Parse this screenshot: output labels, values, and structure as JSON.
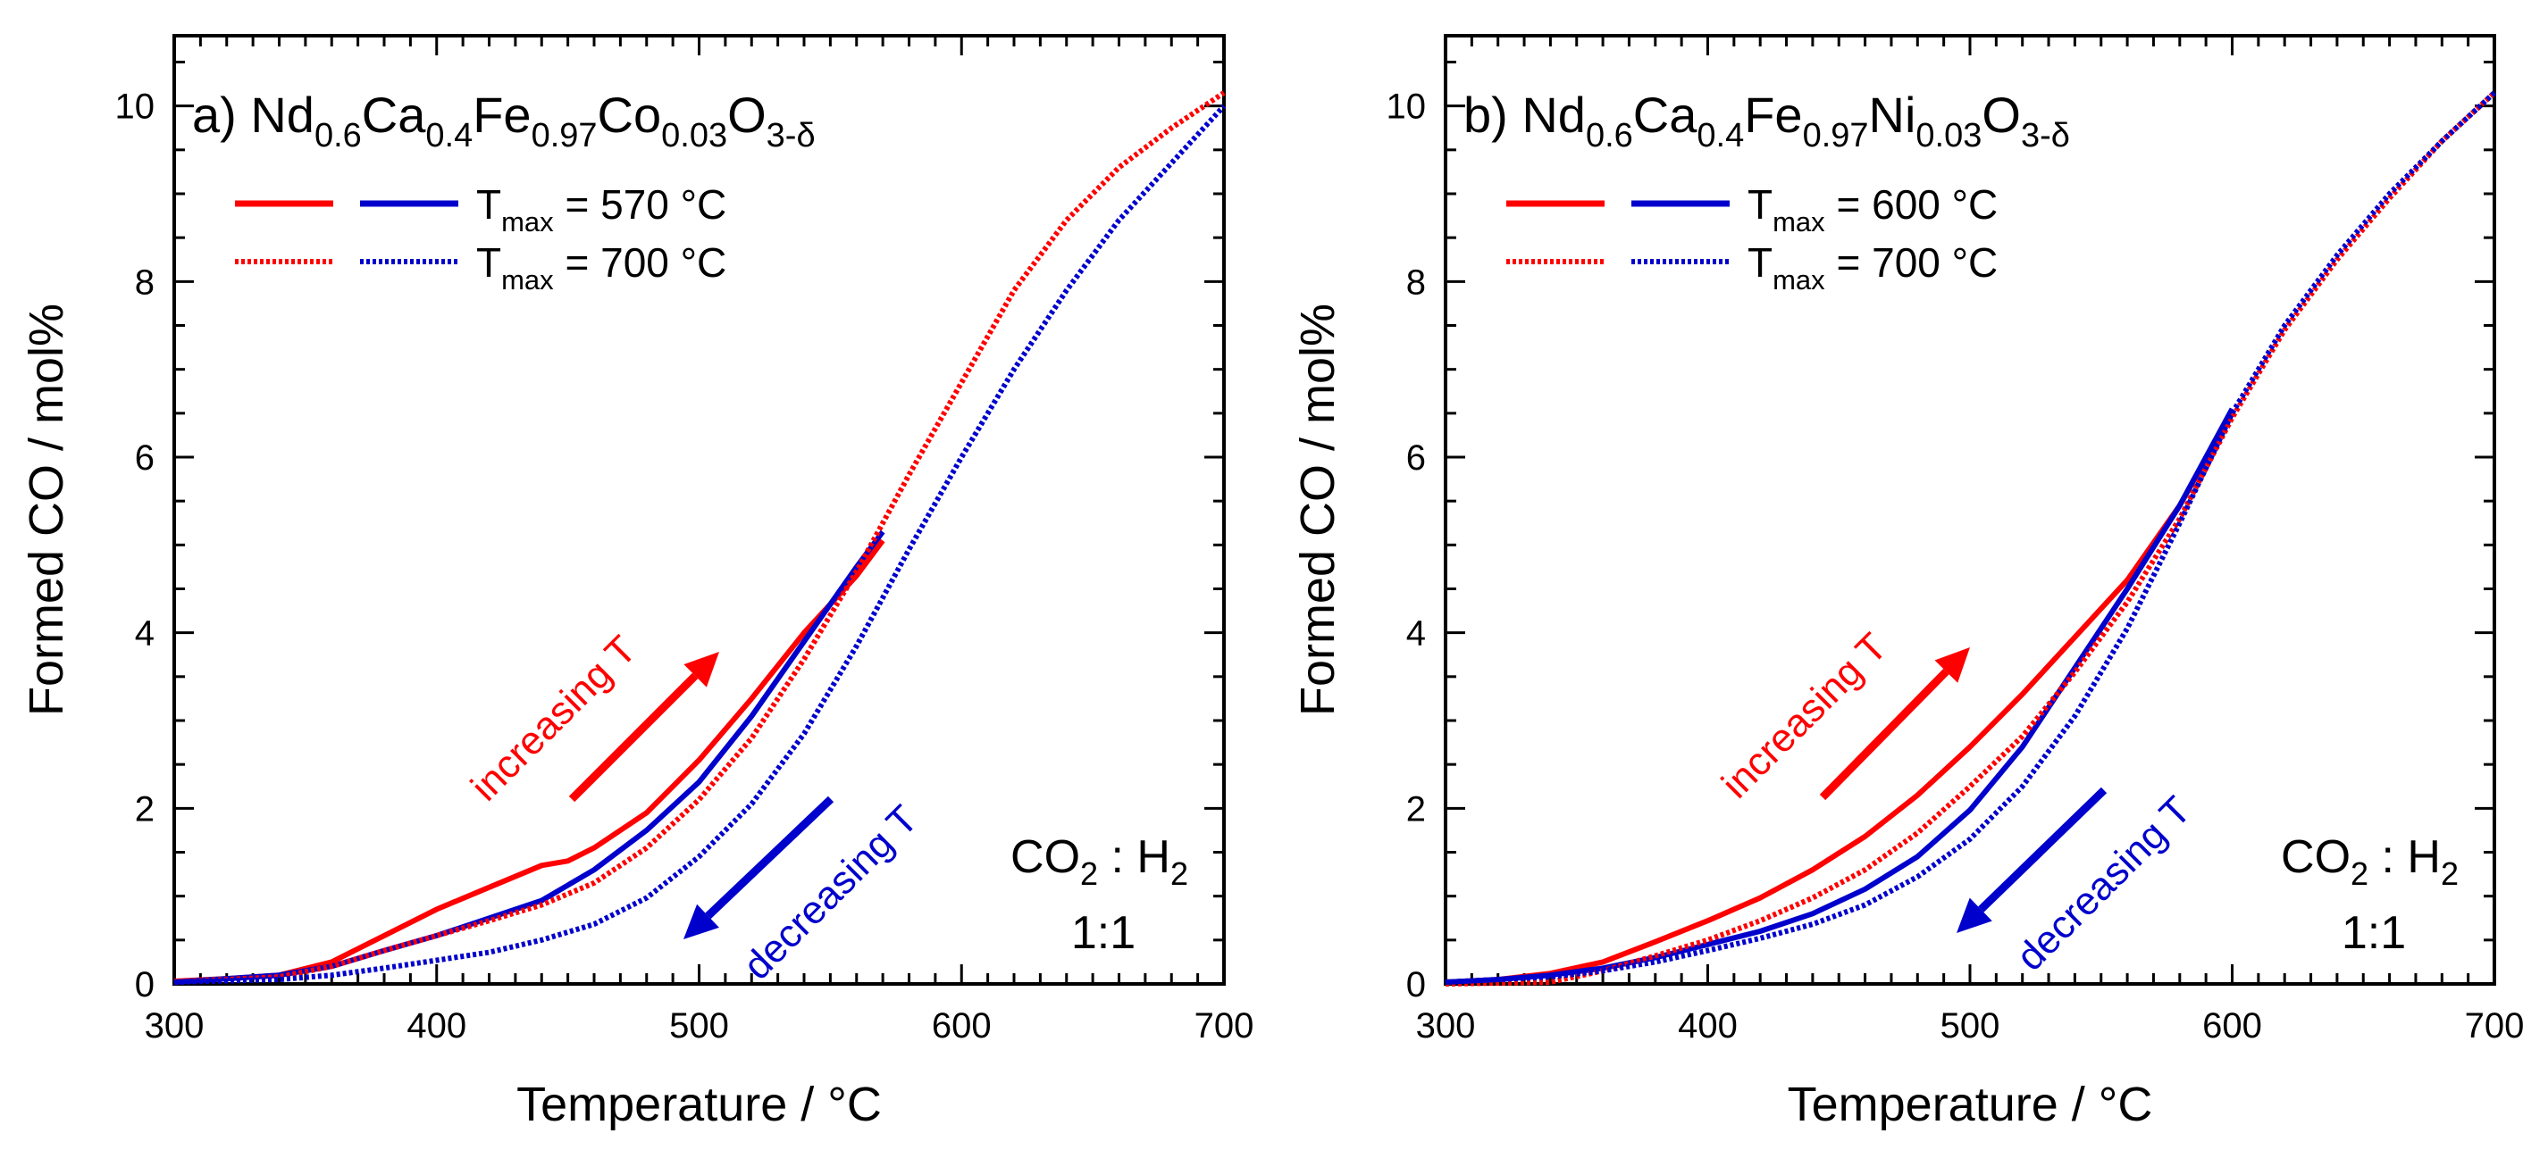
{
  "chart_data": [
    {
      "type": "line",
      "panel_label": "a)",
      "title_parts": [
        {
          "t": "Nd"
        },
        {
          "t": "0.6",
          "sub": true
        },
        {
          "t": "Ca"
        },
        {
          "t": "0.4",
          "sub": true
        },
        {
          "t": "Fe"
        },
        {
          "t": "0.97",
          "sub": true
        },
        {
          "t": "Co"
        },
        {
          "t": "0.03",
          "sub": true
        },
        {
          "t": "O"
        },
        {
          "t": "3-δ",
          "sub": true
        }
      ],
      "xlabel": "Temperature / °C",
      "ylabel": "Formed CO / mol%",
      "xlim": [
        300,
        700
      ],
      "ylim": [
        0,
        10.8
      ],
      "xticks": [
        300,
        400,
        500,
        600,
        700
      ],
      "yticks": [
        0,
        2,
        4,
        6,
        8,
        10
      ],
      "legend": [
        {
          "label_main": "T",
          "label_sub": "max",
          "label_rest": " = 570 °C",
          "style": "solid"
        },
        {
          "label_main": "T",
          "label_sub": "max",
          "label_rest": " = 700 °C",
          "style": "dotted"
        }
      ],
      "annotations": {
        "increasing": "increasing T",
        "decreasing": "decreasing T",
        "gas_main": "CO",
        "gas_sub1": "2",
        "gas_sep": " : H",
        "gas_sub2": "2",
        "ratio": "1:1"
      },
      "colors": {
        "heating": "#ff0000",
        "cooling": "#0000cc"
      },
      "series": [
        {
          "name": "Tmax 570 °C heating",
          "color": "#ff0000",
          "style": "solid",
          "x": [
            300,
            320,
            340,
            360,
            380,
            400,
            420,
            440,
            450,
            460,
            480,
            500,
            520,
            540,
            560,
            570
          ],
          "y": [
            0.03,
            0.06,
            0.1,
            0.25,
            0.55,
            0.85,
            1.1,
            1.35,
            1.4,
            1.55,
            1.95,
            2.55,
            3.25,
            4.0,
            4.65,
            5.05
          ]
        },
        {
          "name": "Tmax 570 °C cooling",
          "color": "#0000cc",
          "style": "solid",
          "x": [
            300,
            320,
            340,
            360,
            380,
            400,
            420,
            440,
            460,
            480,
            500,
            520,
            540,
            560,
            570
          ],
          "y": [
            0.02,
            0.06,
            0.1,
            0.2,
            0.38,
            0.55,
            0.75,
            0.95,
            1.3,
            1.75,
            2.3,
            3.05,
            3.9,
            4.75,
            5.15
          ]
        },
        {
          "name": "Tmax 700 °C heating",
          "color": "#ff0000",
          "style": "dotted",
          "x": [
            300,
            340,
            360,
            380,
            400,
            420,
            440,
            460,
            480,
            500,
            520,
            540,
            560,
            580,
            600,
            620,
            640,
            660,
            680,
            700
          ],
          "y": [
            0.02,
            0.08,
            0.2,
            0.38,
            0.55,
            0.72,
            0.9,
            1.15,
            1.55,
            2.1,
            2.8,
            3.7,
            4.7,
            5.8,
            6.85,
            7.9,
            8.7,
            9.3,
            9.75,
            10.15
          ]
        },
        {
          "name": "Tmax 700 °C cooling",
          "color": "#0000cc",
          "style": "dotted",
          "x": [
            300,
            340,
            360,
            380,
            400,
            420,
            440,
            460,
            480,
            500,
            520,
            540,
            560,
            580,
            600,
            620,
            640,
            660,
            680,
            700
          ],
          "y": [
            0.02,
            0.05,
            0.1,
            0.18,
            0.27,
            0.36,
            0.5,
            0.68,
            0.98,
            1.45,
            2.05,
            2.85,
            3.85,
            4.95,
            6.0,
            7.0,
            7.9,
            8.7,
            9.35,
            10.0
          ]
        }
      ]
    },
    {
      "type": "line",
      "panel_label": "b)",
      "title_parts": [
        {
          "t": "Nd"
        },
        {
          "t": "0.6",
          "sub": true
        },
        {
          "t": "Ca"
        },
        {
          "t": "0.4",
          "sub": true
        },
        {
          "t": "Fe"
        },
        {
          "t": "0.97",
          "sub": true
        },
        {
          "t": "Ni"
        },
        {
          "t": "0.03",
          "sub": true
        },
        {
          "t": "O"
        },
        {
          "t": "3-δ",
          "sub": true
        }
      ],
      "xlabel": "Temperature / °C",
      "ylabel": "Formed CO / mol%",
      "xlim": [
        300,
        700
      ],
      "ylim": [
        0,
        10.8
      ],
      "xticks": [
        300,
        400,
        500,
        600,
        700
      ],
      "yticks": [
        0,
        2,
        4,
        6,
        8,
        10
      ],
      "legend": [
        {
          "label_main": "T",
          "label_sub": "max",
          "label_rest": " = 600 °C",
          "style": "solid"
        },
        {
          "label_main": "T",
          "label_sub": "max",
          "label_rest": " = 700 °C",
          "style": "dotted"
        }
      ],
      "annotations": {
        "increasing": "increasing T",
        "decreasing": "decreasing T",
        "gas_main": "CO",
        "gas_sub1": "2",
        "gas_sep": " : H",
        "gas_sub2": "2",
        "ratio": "1:1"
      },
      "colors": {
        "heating": "#ff0000",
        "cooling": "#0000cc"
      },
      "series": [
        {
          "name": "Tmax 600 °C heating",
          "color": "#ff0000",
          "style": "solid",
          "x": [
            300,
            320,
            340,
            360,
            380,
            400,
            420,
            440,
            460,
            480,
            500,
            520,
            540,
            560,
            580,
            600
          ],
          "y": [
            0.02,
            0.05,
            0.12,
            0.25,
            0.48,
            0.72,
            0.98,
            1.3,
            1.68,
            2.15,
            2.7,
            3.3,
            3.95,
            4.6,
            5.45,
            6.5
          ]
        },
        {
          "name": "Tmax 600 °C cooling",
          "color": "#0000cc",
          "style": "solid",
          "x": [
            300,
            320,
            340,
            360,
            380,
            400,
            420,
            440,
            460,
            480,
            500,
            520,
            540,
            560,
            580,
            600
          ],
          "y": [
            0.02,
            0.05,
            0.1,
            0.18,
            0.3,
            0.45,
            0.6,
            0.8,
            1.08,
            1.45,
            1.98,
            2.7,
            3.6,
            4.5,
            5.45,
            6.55
          ]
        },
        {
          "name": "Tmax 700 °C heating",
          "color": "#ff0000",
          "style": "dotted",
          "x": [
            300,
            340,
            360,
            380,
            400,
            420,
            440,
            460,
            480,
            500,
            520,
            540,
            560,
            580,
            600,
            620,
            640,
            660,
            680,
            700
          ],
          "y": [
            0.0,
            0.02,
            0.15,
            0.32,
            0.5,
            0.72,
            0.98,
            1.3,
            1.72,
            2.25,
            2.82,
            3.55,
            4.35,
            5.3,
            6.45,
            7.45,
            8.25,
            8.95,
            9.6,
            10.15
          ]
        },
        {
          "name": "Tmax 700 °C cooling",
          "color": "#0000cc",
          "style": "dotted",
          "x": [
            300,
            340,
            360,
            380,
            400,
            420,
            440,
            460,
            480,
            500,
            520,
            540,
            560,
            580,
            600,
            620,
            640,
            660,
            680,
            700
          ],
          "y": [
            0.02,
            0.08,
            0.15,
            0.25,
            0.38,
            0.52,
            0.68,
            0.9,
            1.22,
            1.65,
            2.25,
            3.05,
            4.05,
            5.25,
            6.5,
            7.5,
            8.3,
            9.0,
            9.6,
            10.15
          ]
        }
      ]
    }
  ]
}
